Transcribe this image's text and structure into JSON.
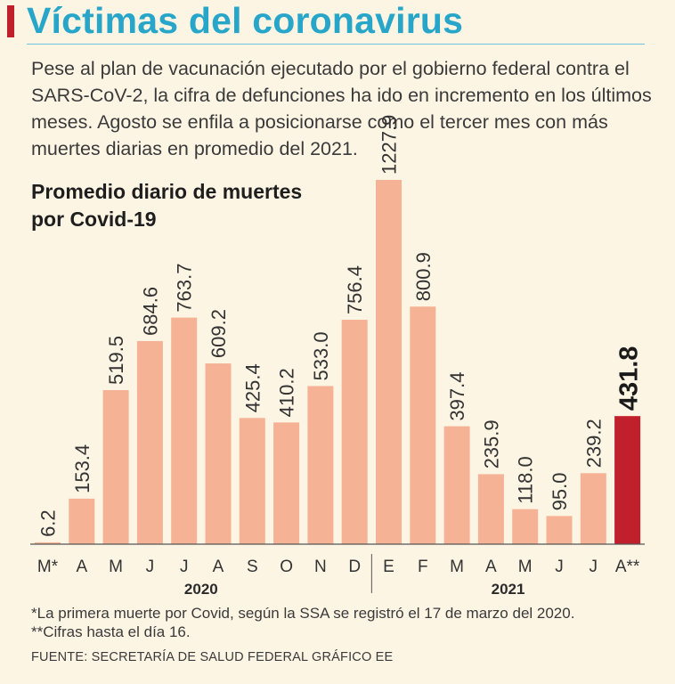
{
  "header": {
    "title": "Víctimas del coronavirus",
    "intro": "Pese al plan de vacunación ejecutado por el gobierno federal contra el SARS-CoV-2, la cifra de defunciones ha ido en incremento en los últimos meses. Agosto se enfila a posicionarse como el tercer mes con más muertes diarias en promedio del 2021."
  },
  "chart_data": {
    "type": "bar",
    "title": "Promedio diario de muertes por Covid-19",
    "categories": [
      "M*",
      "A",
      "M",
      "J",
      "J",
      "A",
      "S",
      "O",
      "N",
      "D",
      "E",
      "F",
      "M",
      "A",
      "M",
      "J",
      "J",
      "A**"
    ],
    "values": [
      6.2,
      153.4,
      519.5,
      684.6,
      763.7,
      609.2,
      425.4,
      410.2,
      533.0,
      756.4,
      1227.9,
      800.9,
      397.4,
      235.9,
      118.0,
      95.0,
      239.2,
      431.8
    ],
    "value_labels": [
      "6.2",
      "153.4",
      "519.5",
      "684.6",
      "763.7",
      "609.2",
      "425.4",
      "410.2",
      "533.0",
      "756.4",
      "1227.9",
      "800.9",
      "397.4",
      "235.9",
      "118.0",
      "95.0",
      "239.2",
      "431.8"
    ],
    "year_groups": [
      {
        "label": "2020",
        "start": 0,
        "end": 9
      },
      {
        "label": "2021",
        "start": 10,
        "end": 17
      }
    ],
    "highlight_index": 17,
    "ylim": [
      0,
      1227.9
    ],
    "xlabel": "",
    "ylabel": "",
    "colors": {
      "bar": "#f6b295",
      "highlight": "#c0202b",
      "text": "#333333"
    }
  },
  "footnotes": {
    "note1": "*La primera muerte por Covid, según la SSA se registró el 17 de marzo del 2020.",
    "note2": "**Cifras hasta el día 16."
  },
  "source": "FUENTE: SECRETARÍA DE SALUD FEDERAL GRÁFICO EE"
}
